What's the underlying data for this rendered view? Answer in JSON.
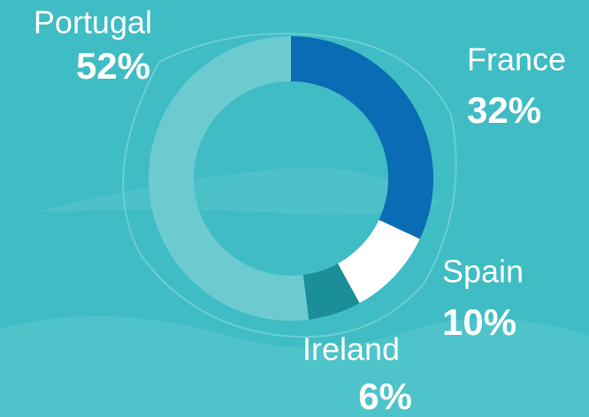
{
  "chart_data": {
    "type": "donut",
    "categories": [
      "France",
      "Spain",
      "Ireland",
      "Portugal"
    ],
    "values": [
      32,
      10,
      6,
      52
    ],
    "value_labels": [
      "32%",
      "10%",
      "6%",
      "52%"
    ],
    "colors": [
      "#0a6cb4",
      "#ffffff",
      "#1a8f97",
      "#6ccbd1"
    ]
  }
}
